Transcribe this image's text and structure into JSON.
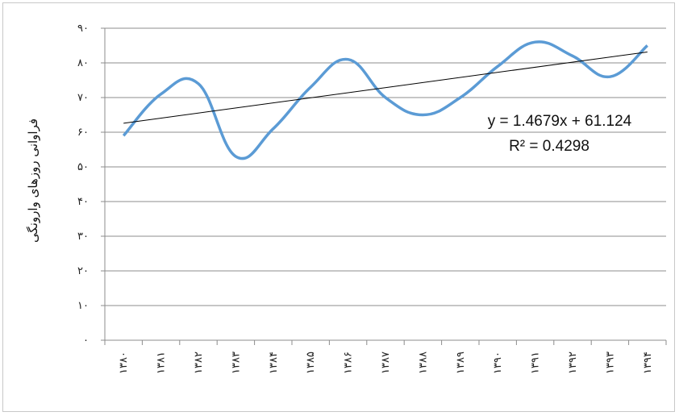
{
  "chart_data": {
    "type": "line",
    "ylabel": "فراوانی روزهای وارونگی",
    "xlabel": "",
    "ylim": [
      0,
      90
    ],
    "yticks": [
      "۰",
      "۱۰",
      "۲۰",
      "۳۰",
      "۴۰",
      "۵۰",
      "۶۰",
      "۷۰",
      "۸۰",
      "۹۰"
    ],
    "categories": [
      "۱۳۸۰",
      "۱۳۸۱",
      "۱۳۸۲",
      "۱۳۸۳",
      "۱۳۸۴",
      "۱۳۸۵",
      "۱۳۸۶",
      "۱۳۸۷",
      "۱۳۸۸",
      "۱۳۸۹",
      "۱۳۹۰",
      "۱۳۹۱",
      "۱۳۹۲",
      "۱۳۹۳",
      "۱۳۹۴"
    ],
    "series": [
      {
        "values": [
          59,
          71,
          74,
          53,
          61,
          73,
          81,
          70,
          65,
          70,
          79,
          86,
          82,
          76,
          85
        ],
        "color": "#5b9bd5"
      }
    ],
    "trendline": {
      "slope": 1.4679,
      "intercept": 61.124,
      "equation": "y = 1.4679x + 61.124",
      "r_squared": "R² = 0.4298",
      "color": "#000000"
    },
    "grid": true
  }
}
